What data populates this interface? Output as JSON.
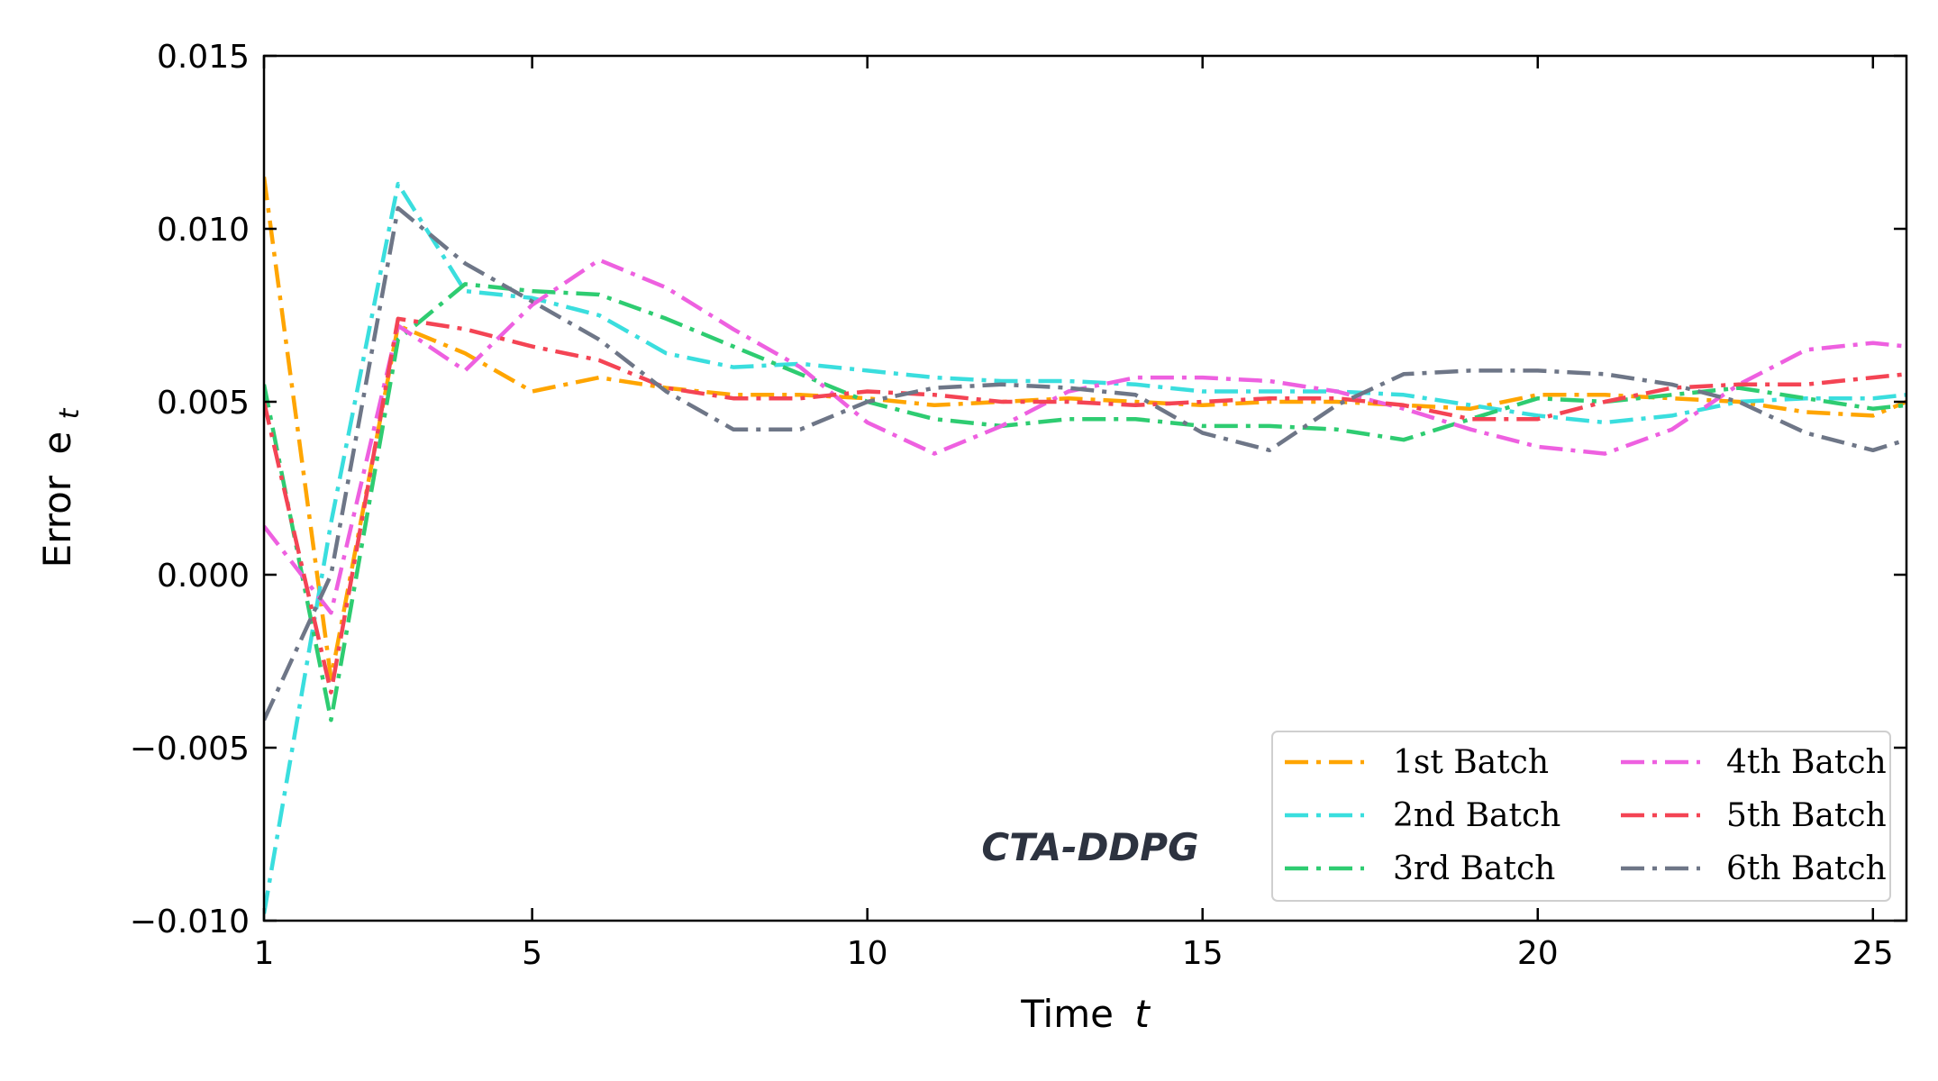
{
  "chart_data": {
    "type": "line",
    "xlabel": "Time",
    "xlabel_var": "t",
    "ylabel": "Error",
    "ylabel_var": "e",
    "ylabel_sub": "t",
    "xlim": [
      1,
      25.5
    ],
    "ylim": [
      -0.01,
      0.015
    ],
    "xticks": [
      1,
      5,
      10,
      15,
      20,
      25
    ],
    "yticks": [
      -0.01,
      -0.005,
      0.0,
      0.005,
      0.01,
      0.015
    ],
    "ytick_labels": [
      "−0.010",
      "−0.005",
      "0.000",
      "0.005",
      "0.010",
      "0.015"
    ],
    "grid": false,
    "legend_position": "lower-right",
    "annotation": "CTA-DDPG",
    "x": [
      1,
      2,
      3,
      4,
      5,
      6,
      7,
      8,
      9,
      10,
      11,
      12,
      13,
      14,
      15,
      16,
      17,
      18,
      19,
      20,
      21,
      22,
      23,
      24,
      25,
      25.5
    ],
    "series": [
      {
        "name": "1st Batch",
        "color": "#FFA500",
        "values": [
          0.0115,
          -0.003,
          0.0072,
          0.0064,
          0.0053,
          0.0057,
          0.0054,
          0.0052,
          0.0052,
          0.0051,
          0.0049,
          0.005,
          0.0051,
          0.005,
          0.0049,
          0.005,
          0.005,
          0.0049,
          0.0048,
          0.0052,
          0.0052,
          0.0051,
          0.005,
          0.0047,
          0.0046,
          0.005
        ]
      },
      {
        "name": "2nd Batch",
        "color": "#3ADEDE",
        "values": [
          -0.0098,
          0.0015,
          0.0113,
          0.0082,
          0.008,
          0.0075,
          0.0064,
          0.006,
          0.0061,
          0.0059,
          0.0057,
          0.0056,
          0.0056,
          0.0055,
          0.0053,
          0.0053,
          0.0053,
          0.0052,
          0.0049,
          0.0046,
          0.0044,
          0.0046,
          0.005,
          0.0051,
          0.0051,
          0.0052
        ]
      },
      {
        "name": "3rd Batch",
        "color": "#2ECC71",
        "values": [
          0.0055,
          -0.0042,
          0.0068,
          0.0084,
          0.0082,
          0.0081,
          0.0074,
          0.0066,
          0.0058,
          0.005,
          0.0045,
          0.0043,
          0.0045,
          0.0045,
          0.0043,
          0.0043,
          0.0042,
          0.0039,
          0.0045,
          0.0051,
          0.005,
          0.0052,
          0.0054,
          0.0051,
          0.0048,
          0.0049
        ]
      },
      {
        "name": "4th Batch",
        "color": "#EE60E0",
        "values": [
          0.0014,
          -0.0011,
          0.0072,
          0.0059,
          0.0078,
          0.0091,
          0.0083,
          0.0071,
          0.006,
          0.0044,
          0.0035,
          0.0043,
          0.0053,
          0.0057,
          0.0057,
          0.0056,
          0.0053,
          0.0048,
          0.0042,
          0.0037,
          0.0035,
          0.0042,
          0.0055,
          0.0065,
          0.0067,
          0.0066
        ]
      },
      {
        "name": "5th Batch",
        "color": "#F44454",
        "values": [
          0.005,
          -0.0034,
          0.0074,
          0.0071,
          0.0066,
          0.0062,
          0.0054,
          0.0051,
          0.0051,
          0.0053,
          0.0052,
          0.005,
          0.005,
          0.0049,
          0.005,
          0.0051,
          0.0051,
          0.0049,
          0.0045,
          0.0045,
          0.005,
          0.0054,
          0.0055,
          0.0055,
          0.0057,
          0.0058
        ]
      },
      {
        "name": "6th Batch",
        "color": "#6E7687",
        "values": [
          -0.0042,
          0.0,
          0.0106,
          0.009,
          0.0079,
          0.0068,
          0.0053,
          0.0042,
          0.0042,
          0.005,
          0.0054,
          0.0055,
          0.0054,
          0.0052,
          0.0041,
          0.0036,
          0.0049,
          0.0058,
          0.0059,
          0.0059,
          0.0058,
          0.0055,
          0.005,
          0.0041,
          0.0036,
          0.0039
        ]
      }
    ]
  }
}
